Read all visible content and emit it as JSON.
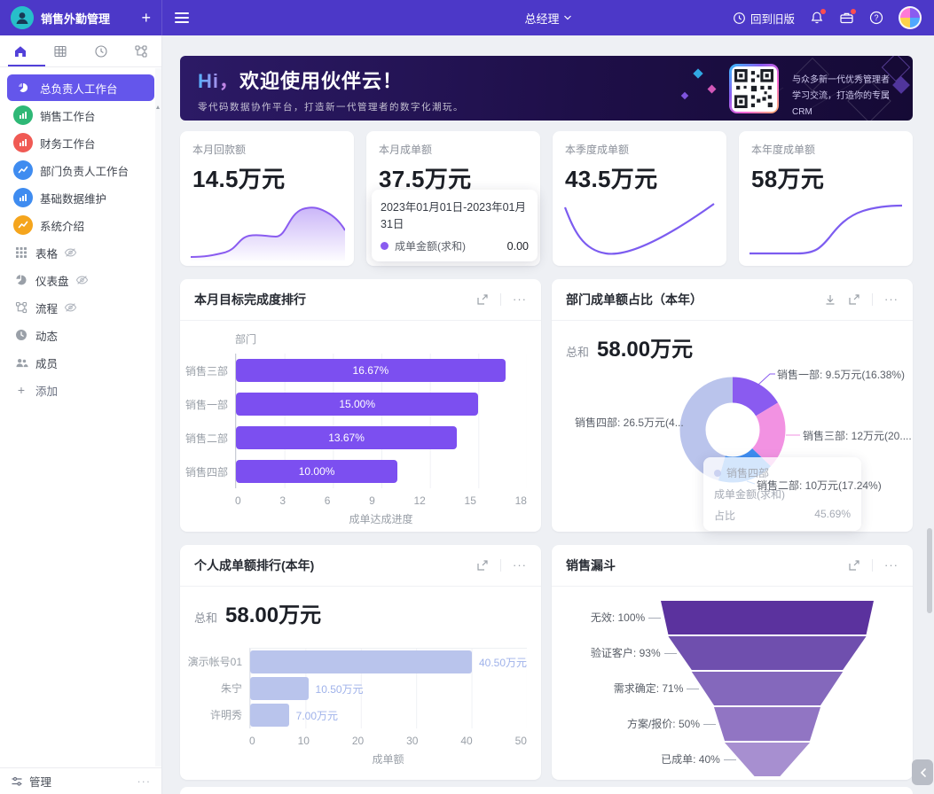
{
  "topbar": {
    "app_title": "销售外勤管理",
    "role": "总经理",
    "back_label": "回到旧版"
  },
  "sidebar": {
    "workspaces": [
      {
        "label": "总负责人工作台",
        "color": "#6456eb",
        "icon": "pie-chart"
      },
      {
        "label": "销售工作台",
        "color": "#2eb876",
        "icon": "bar-chart"
      },
      {
        "label": "财务工作台",
        "color": "#f05a54",
        "icon": "bar-chart"
      },
      {
        "label": "部门负责人工作台",
        "color": "#3f8cf0",
        "icon": "line-chart"
      },
      {
        "label": "基础数据维护",
        "color": "#3f8cf0",
        "icon": "bar-chart"
      },
      {
        "label": "系统介绍",
        "color": "#f5a51d",
        "icon": "line-chart"
      }
    ],
    "views": [
      {
        "label": "表格",
        "hidden": true
      },
      {
        "label": "仪表盘",
        "hidden": true
      },
      {
        "label": "流程",
        "hidden": true
      },
      {
        "label": "动态",
        "hidden": false
      },
      {
        "label": "成员",
        "hidden": false
      }
    ],
    "add_label": "添加",
    "manage_label": "管理"
  },
  "banner": {
    "greeting": "Hi，",
    "title": "欢迎使用伙伴云！",
    "subtitle": "零代码数据协作平台，打造新一代管理者的数字化潮玩。",
    "qr_line1": "与众多新一代优秀管理者",
    "qr_line2": "学习交流，打造你的专属CRM"
  },
  "stat_cards": [
    {
      "label": "本月回款额",
      "value": "14.5万元"
    },
    {
      "label": "本月成单额",
      "value": "37.5万元",
      "tooltip": {
        "date_range": "2023年01月01日-2023年01月31日",
        "series": "成单金额(求和)",
        "value": "0.00",
        "dot_color": "#8a5cf0"
      }
    },
    {
      "label": "本季度成单额",
      "value": "43.5万元"
    },
    {
      "label": "本年度成单额",
      "value": "58万元"
    }
  ],
  "chart_data": [
    {
      "id": "monthly-target-completion",
      "type": "bar",
      "orientation": "horizontal",
      "title": "本月目标完成度排行",
      "axis_title": "部门",
      "categories": [
        "销售三部",
        "销售一部",
        "销售二部",
        "销售四部"
      ],
      "values": [
        16.67,
        15.0,
        13.67,
        10.0
      ],
      "bar_labels": [
        "16.67%",
        "15.00%",
        "13.67%",
        "10.00%"
      ],
      "xlabel": "成单达成进度",
      "xticks": [
        0,
        3,
        6,
        9,
        12,
        15,
        18
      ],
      "xlim": [
        0,
        18
      ],
      "bar_color": "#7c4ff0",
      "grid": true
    },
    {
      "id": "dept-deal-share",
      "type": "donut",
      "title": "部门成单额占比（本年）",
      "total_label": "总和",
      "total_value": "58.00万元",
      "slices": [
        {
          "name": "销售一部",
          "value": 9.5,
          "pct": 16.38,
          "label": "销售一部: 9.5万元(16.38%)",
          "color": "#8a5bf0"
        },
        {
          "name": "销售三部",
          "value": 12,
          "pct": 20.69,
          "label": "销售三部: 12万元(20....",
          "color": "#f292e2"
        },
        {
          "name": "销售二部",
          "value": 10,
          "pct": 17.24,
          "label": "销售二部: 10万元(17.24%)",
          "color": "#3e8cf0"
        },
        {
          "name": "销售四部",
          "value": 26.5,
          "pct": 45.69,
          "label": "销售四部: 26.5万元(4...",
          "color": "#bac4ec"
        }
      ],
      "tooltip": {
        "name": "销售四部",
        "row_label": "成单金额(求和)",
        "pct_label": "占比",
        "pct_value": "45.69%"
      }
    },
    {
      "id": "personal-deal-ranking",
      "type": "bar",
      "orientation": "horizontal",
      "title": "个人成单额排行(本年)",
      "total_label": "总和",
      "total_value": "58.00万元",
      "categories": [
        "演示帐号01",
        "朱宁",
        "许明秀"
      ],
      "values": [
        40.5,
        10.5,
        7.0
      ],
      "bar_labels": [
        "40.50万元",
        "10.50万元",
        "7.00万元"
      ],
      "xlabel": "成单额",
      "xticks": [
        0,
        10,
        20,
        30,
        40,
        50
      ],
      "xlim": [
        0,
        50
      ],
      "bar_color": "#b9c4ec",
      "grid": true
    },
    {
      "id": "sales-funnel",
      "type": "funnel",
      "title": "销售漏斗",
      "stages": [
        {
          "name": "无效",
          "label": "无效: 100%",
          "value": 100,
          "color": "#5b329e"
        },
        {
          "name": "验证客户",
          "label": "验证客户: 93%",
          "value": 93,
          "color": "#6f4fae"
        },
        {
          "name": "需求确定",
          "label": "需求确定: 71%",
          "value": 71,
          "color": "#8468bc"
        },
        {
          "name": "方案/报价",
          "label": "方案/报价: 50%",
          "value": 50,
          "color": "#9175c3"
        },
        {
          "name": "已成单",
          "label": "已成单: 40%",
          "value": 40,
          "color": "#a78fd0"
        }
      ]
    }
  ]
}
